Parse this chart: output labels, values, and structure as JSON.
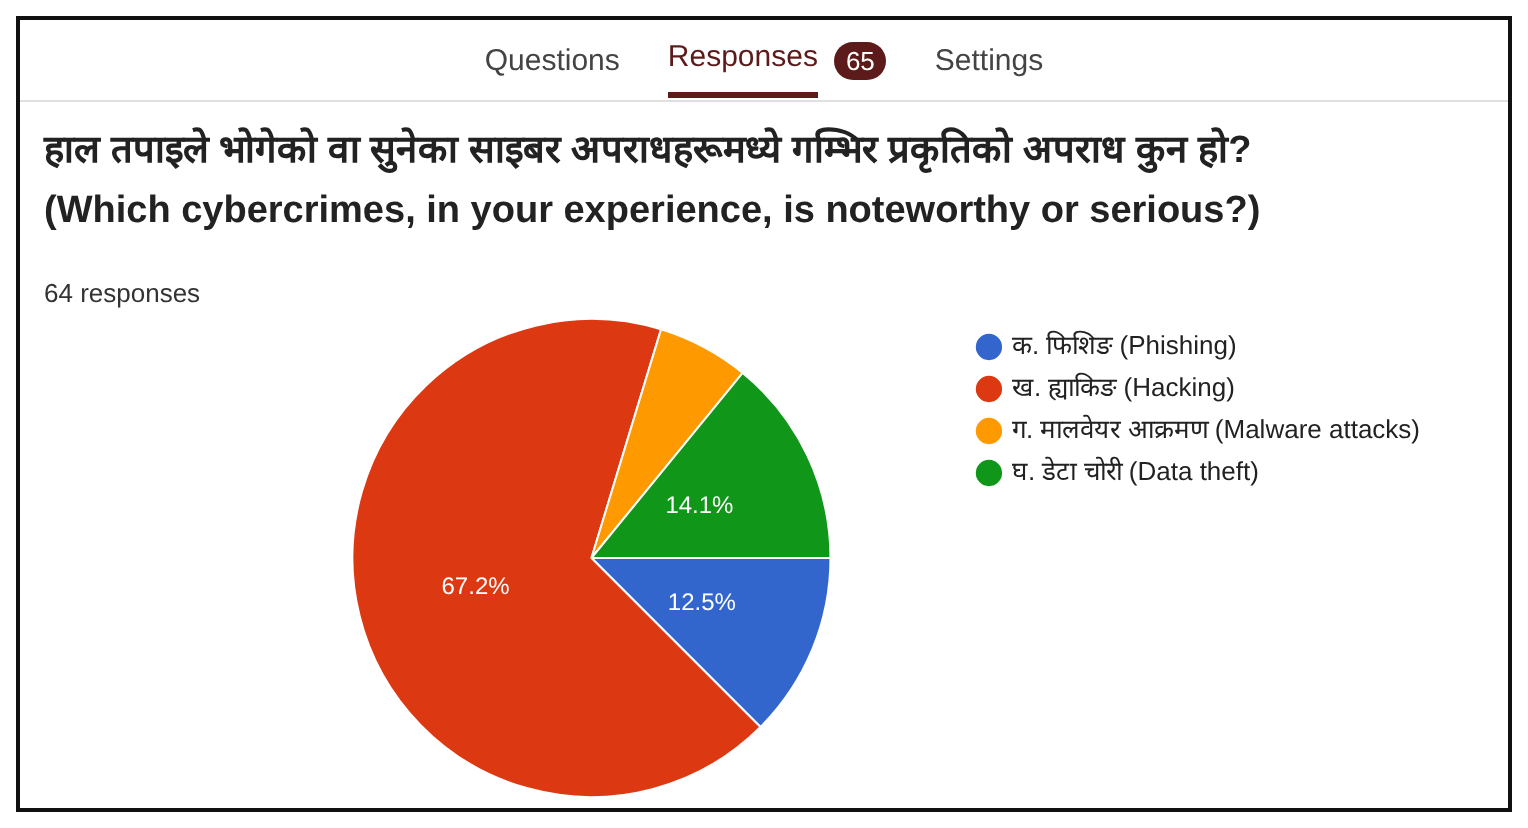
{
  "chart_data": {
    "type": "pie",
    "title": "हाल तपाइले भोगेको वा सुनेका साइबर अपराधहरूमध्ये गम्भिर प्रकृतिको अपराध कुन हो? (Which cybercrimes, in your experience, is noteworthy or serious?)",
    "subtitle": "64 responses",
    "annotations": [
      "Questions",
      "Responses",
      "65",
      "Settings"
    ],
    "categories": [
      "क. फिशिङ (Phishing)",
      "ख. ह्याकिङ (Hacking)",
      "ग. मालवेयर आक्रमण (Malware attacks)",
      "घ. डेटा चोरी (Data theft)"
    ],
    "values": [
      12.5,
      67.2,
      6.2,
      14.1
    ],
    "value_labels": [
      "12.5%",
      "67.2%",
      null,
      "14.1%"
    ],
    "colors": [
      "#3366cc",
      "#dc3912",
      "#ff9900",
      "#109618"
    ],
    "legend": "right"
  }
}
